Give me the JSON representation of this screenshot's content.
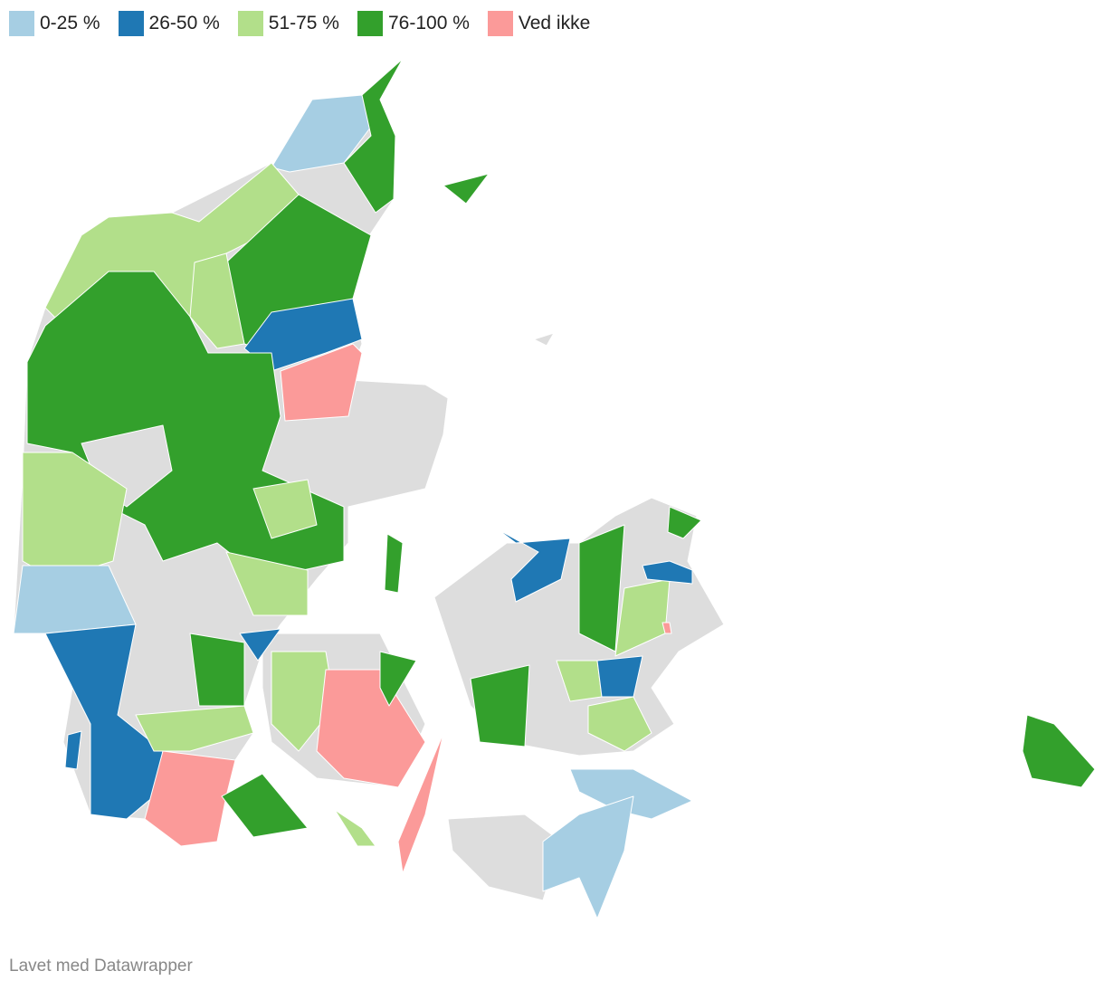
{
  "legend": [
    {
      "label": "0-25 %",
      "color": "#a6cee3"
    },
    {
      "label": "26-50 %",
      "color": "#1f78b4"
    },
    {
      "label": "51-75 %",
      "color": "#b2df8a"
    },
    {
      "label": "76-100 %",
      "color": "#33a02c"
    },
    {
      "label": "Ved ikke",
      "color": "#fb9a99"
    }
  ],
  "no_data_color": "#dddddd",
  "footer": "Lavet med Datawrapper"
}
